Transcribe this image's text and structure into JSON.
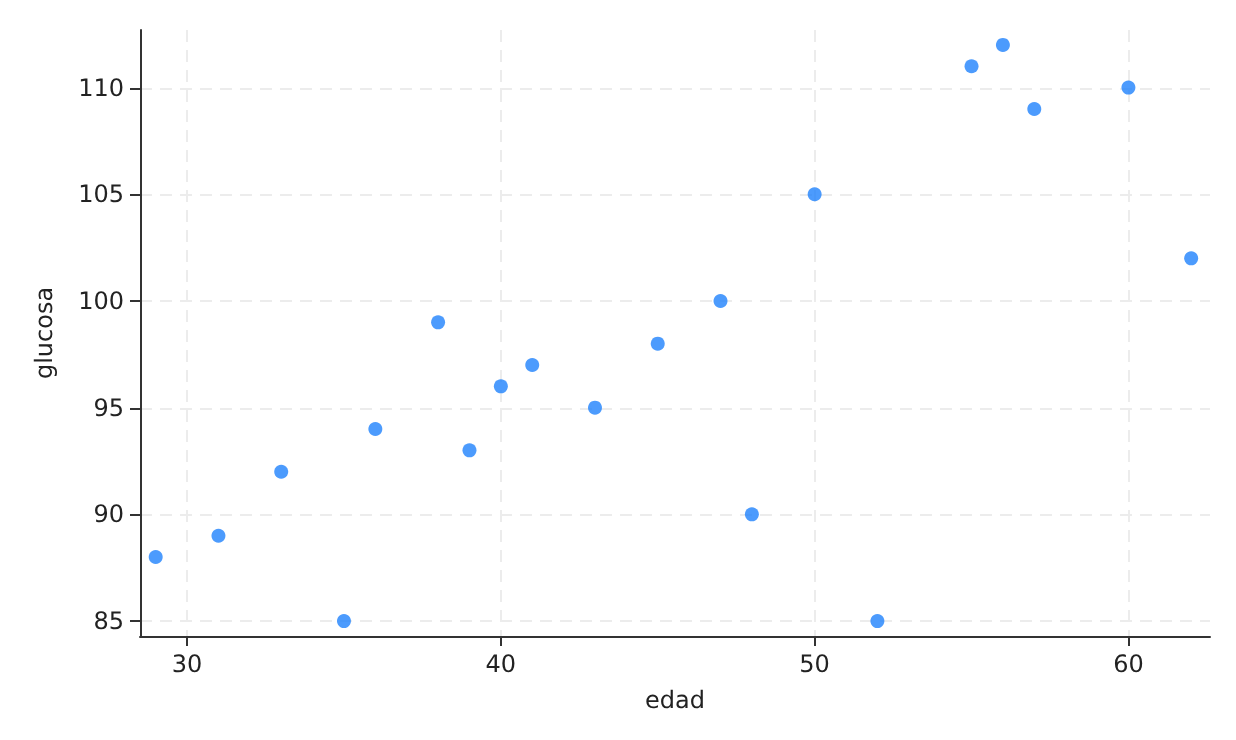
{
  "chart_data": {
    "type": "scatter",
    "xlabel": "edad",
    "ylabel": "glucosa",
    "x": [
      29,
      31,
      33,
      35,
      36,
      38,
      39,
      40,
      41,
      43,
      45,
      47,
      48,
      50,
      52,
      55,
      56,
      57,
      60,
      62
    ],
    "series": [
      {
        "color": "#1f82fc",
        "values": [
          88,
          89,
          92,
          85,
          94,
          99,
          93,
          96,
          97,
          95,
          98,
          100,
          90,
          105,
          85,
          111,
          112,
          109,
          110,
          102
        ]
      }
    ],
    "xlim": [
      28.5,
      62.6
    ],
    "xticks": [
      30,
      40,
      50,
      60
    ],
    "ylim": [
      84.3,
      112.7
    ],
    "yticks": [
      85,
      90,
      95,
      100,
      105,
      110
    ],
    "grid": true,
    "marker": "circle"
  }
}
